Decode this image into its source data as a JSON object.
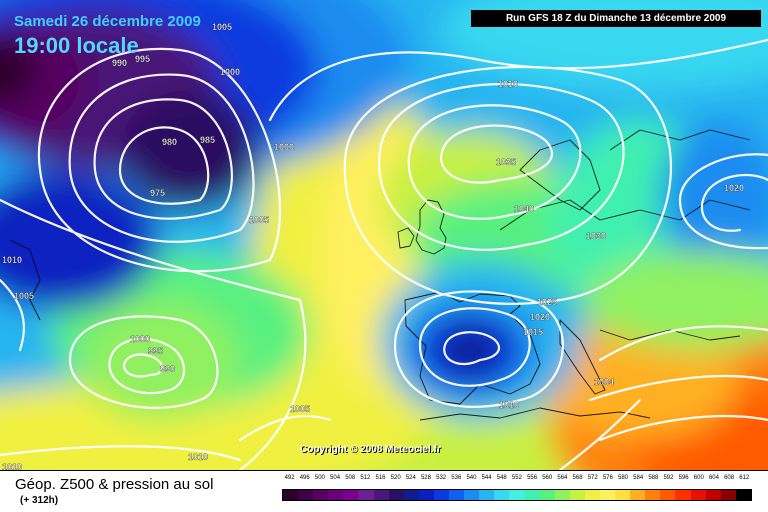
{
  "header": {
    "date": "Samedi 26 décembre 2009",
    "time": "19:00 locale",
    "run": "Run GFS 18 Z du Dimanche 13 décembre 2009"
  },
  "copyright": "Copyright © 2008 Meteociel.fr",
  "footer": {
    "title": "Géop. Z500 & pression au sol",
    "forecast": "(+ 312h)"
  },
  "scale": {
    "values": [
      "492",
      "496",
      "500",
      "504",
      "508",
      "512",
      "516",
      "520",
      "524",
      "528",
      "532",
      "536",
      "540",
      "544",
      "548",
      "552",
      "556",
      "560",
      "564",
      "568",
      "572",
      "576",
      "580",
      "584",
      "588",
      "592",
      "596",
      "600",
      "604",
      "608",
      "612"
    ],
    "colors": [
      "#2a0028",
      "#3d0048",
      "#560060",
      "#6a0078",
      "#7c0090",
      "#6a2090",
      "#4a1878",
      "#2a1060",
      "#101c90",
      "#0820c0",
      "#0a3ae0",
      "#1060f0",
      "#1c8cf0",
      "#28b4f0",
      "#38d8f0",
      "#40f0e0",
      "#40f0b0",
      "#58f080",
      "#90f060",
      "#c8f040",
      "#f0f040",
      "#fff060",
      "#ffe040",
      "#ffb020",
      "#ff8010",
      "#ff5a00",
      "#ff3000",
      "#e81000",
      "#c00000",
      "#8a0000",
      "#000000"
    ]
  },
  "isobar_labels": [
    {
      "text": "990"
    },
    {
      "text": "995"
    },
    {
      "text": "1005"
    },
    {
      "text": "1000"
    },
    {
      "text": "980"
    },
    {
      "text": "985"
    },
    {
      "text": "975"
    },
    {
      "text": "1000"
    },
    {
      "text": "1010"
    },
    {
      "text": "1035"
    },
    {
      "text": "1040"
    },
    {
      "text": "1030"
    },
    {
      "text": "1020"
    },
    {
      "text": "1005"
    },
    {
      "text": "1010"
    },
    {
      "text": "1005"
    },
    {
      "text": "1000"
    },
    {
      "text": "995"
    },
    {
      "text": "990"
    },
    {
      "text": "1025"
    },
    {
      "text": "1020"
    },
    {
      "text": "1015"
    },
    {
      "text": "1004"
    },
    {
      "text": "1010"
    },
    {
      "text": "1005"
    },
    {
      "text": "1010"
    },
    {
      "text": "1010"
    }
  ]
}
